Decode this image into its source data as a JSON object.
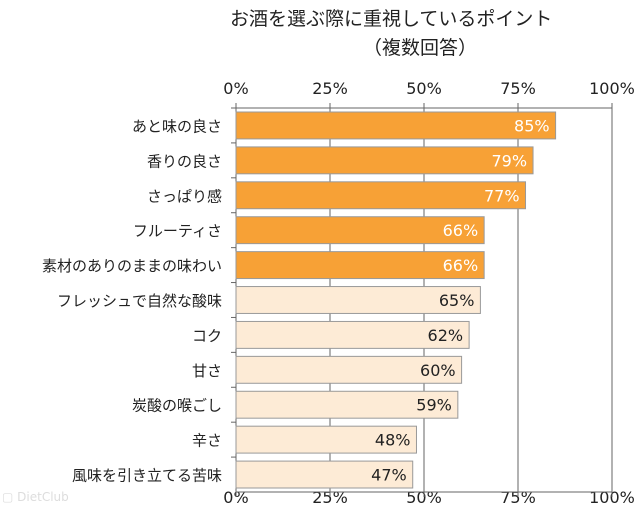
{
  "chart_data": {
    "type": "bar",
    "orientation": "horizontal",
    "title": "お酒を選ぶ際に重視しているポイント",
    "subtitle": "（複数回答）",
    "categories": [
      "あと味の良さ",
      "香りの良さ",
      "さっぱり感",
      "フルーティさ",
      "素材のありのままの味わい",
      "フレッシュで自然な酸味",
      "コク",
      "甘さ",
      "炭酸の喉ごし",
      "辛さ",
      "風味を引き立てる苦味"
    ],
    "values": [
      85,
      79,
      77,
      66,
      66,
      65,
      62,
      60,
      59,
      48,
      47
    ],
    "value_labels": [
      "85%",
      "79%",
      "77%",
      "66%",
      "66%",
      "65%",
      "62%",
      "60%",
      "59%",
      "48%",
      "47%"
    ],
    "highlighted": [
      true,
      true,
      true,
      true,
      true,
      false,
      false,
      false,
      false,
      false,
      false
    ],
    "xlim": [
      0,
      100
    ],
    "xticks": [
      "0%",
      "25%",
      "50%",
      "75%",
      "100%"
    ],
    "xtick_values": [
      0,
      25,
      50,
      75,
      100
    ],
    "grid": true,
    "colors": {
      "highlight": "#F7A136",
      "normal": "#FDEBD6",
      "highlight_label": "#ffffff",
      "normal_label": "#222222",
      "border": "#999999"
    }
  },
  "watermark": "DietClub"
}
